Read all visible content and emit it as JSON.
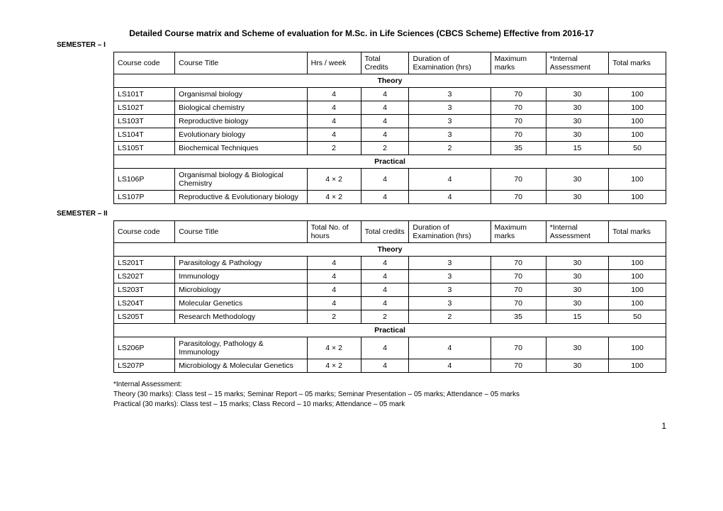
{
  "title": "Detailed Course matrix and Scheme of evaluation for M.Sc. in Life Sciences (CBCS Scheme) Effective from 2016-17",
  "sem1": {
    "label": "SEMESTER – I",
    "headers": {
      "code": "Course code",
      "title": "Course Title",
      "hrs": "Hrs / week",
      "credits": "Total Credits",
      "duration": "Duration of Examination (hrs)",
      "max": "Maximum marks",
      "internal": "*Internal Assessment",
      "total": "Total marks"
    },
    "theory_label": "Theory",
    "practical_label": "Practical",
    "theory": [
      {
        "code": "LS101T",
        "title": "Organismal biology",
        "hrs": "4",
        "credits": "4",
        "duration": "3",
        "max": "70",
        "internal": "30",
        "total": "100"
      },
      {
        "code": "LS102T",
        "title": "Biological chemistry",
        "hrs": "4",
        "credits": "4",
        "duration": "3",
        "max": "70",
        "internal": "30",
        "total": "100"
      },
      {
        "code": "LS103T",
        "title": "Reproductive biology",
        "hrs": "4",
        "credits": "4",
        "duration": "3",
        "max": "70",
        "internal": "30",
        "total": "100"
      },
      {
        "code": "LS104T",
        "title": "Evolutionary biology",
        "hrs": "4",
        "credits": "4",
        "duration": "3",
        "max": "70",
        "internal": "30",
        "total": "100"
      },
      {
        "code": "LS105T",
        "title": "Biochemical Techniques",
        "hrs": "2",
        "credits": "2",
        "duration": "2",
        "max": "35",
        "internal": "15",
        "total": "50"
      }
    ],
    "practical": [
      {
        "code": "LS106P",
        "title": "Organismal biology & Biological Chemistry",
        "hrs": "4 × 2",
        "credits": "4",
        "duration": "4",
        "max": "70",
        "internal": "30",
        "total": "100"
      },
      {
        "code": "LS107P",
        "title": "Reproductive & Evolutionary biology",
        "hrs": "4 × 2",
        "credits": "4",
        "duration": "4",
        "max": "70",
        "internal": "30",
        "total": "100"
      }
    ]
  },
  "sem2": {
    "label": "SEMESTER – II",
    "headers": {
      "code": "Course code",
      "title": "Course Title",
      "hrs": "Total No. of hours",
      "credits": "Total credits",
      "duration": "Duration of Examination (hrs)",
      "max": "Maximum marks",
      "internal": "*Internal Assessment",
      "total": "Total marks"
    },
    "theory_label": "Theory",
    "practical_label": "Practical",
    "theory": [
      {
        "code": "LS201T",
        "title": "Parasitology & Pathology",
        "hrs": "4",
        "credits": "4",
        "duration": "3",
        "max": "70",
        "internal": "30",
        "total": "100"
      },
      {
        "code": "LS202T",
        "title": "Immunology",
        "hrs": "4",
        "credits": "4",
        "duration": "3",
        "max": "70",
        "internal": "30",
        "total": "100"
      },
      {
        "code": "LS203T",
        "title": "Microbiology",
        "hrs": "4",
        "credits": "4",
        "duration": "3",
        "max": "70",
        "internal": "30",
        "total": "100"
      },
      {
        "code": "LS204T",
        "title": "Molecular Genetics",
        "hrs": "4",
        "credits": "4",
        "duration": "3",
        "max": "70",
        "internal": "30",
        "total": "100"
      },
      {
        "code": "LS205T",
        "title": "Research Methodology",
        "hrs": "2",
        "credits": "2",
        "duration": "2",
        "max": "35",
        "internal": "15",
        "total": "50"
      }
    ],
    "practical": [
      {
        "code": "LS206P",
        "title": "Parasitology, Pathology & Immunology",
        "hrs": "4 × 2",
        "credits": "4",
        "duration": "4",
        "max": "70",
        "internal": "30",
        "total": "100"
      },
      {
        "code": "LS207P",
        "title": "Microbiology & Molecular Genetics",
        "hrs": "4 × 2",
        "credits": "4",
        "duration": "4",
        "max": "70",
        "internal": "30",
        "total": "100"
      }
    ]
  },
  "footnote": {
    "line1": "*Internal Assessment:",
    "line2": "Theory (30 marks): Class test – 15 marks; Seminar Report – 05 marks; Seminar Presentation – 05 marks; Attendance – 05 marks",
    "line3": "Practical (30 marks): Class test – 15 marks; Class Record – 10 marks; Attendance – 05 mark"
  },
  "page_number": "1"
}
